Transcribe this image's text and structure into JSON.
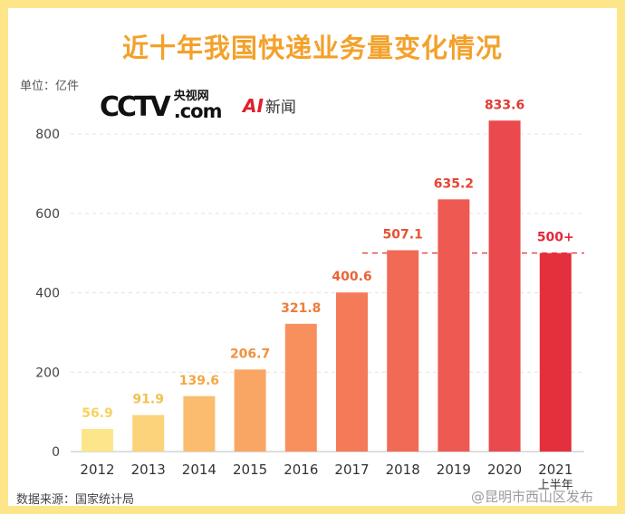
{
  "header": {
    "title": "近十年我国快递业务量变化情况",
    "unit": "单位：亿件"
  },
  "logos": {
    "cctv_mark": "CCTV",
    "cctv_cn": "央视网",
    "cctv_com": ".com",
    "ai_mark": "AI",
    "ai_text": "新闻"
  },
  "footer": {
    "source": "数据来源：国家统计局",
    "watermark": "@昆明市西山区发布"
  },
  "chart_data": {
    "type": "bar",
    "title": "近十年我国快递业务量变化情况",
    "ylabel": "单位：亿件",
    "xlabel": "",
    "ylim": [
      0,
      800
    ],
    "yticks": [
      0,
      200,
      400,
      600,
      800
    ],
    "grid": true,
    "categories": [
      "2012",
      "2013",
      "2014",
      "2015",
      "2016",
      "2017",
      "2018",
      "2019",
      "2020",
      "2021"
    ],
    "category_sublabels": {
      "2021": "上半年"
    },
    "values": [
      56.9,
      91.9,
      139.6,
      206.7,
      321.8,
      400.6,
      507.1,
      635.2,
      833.6,
      500
    ],
    "value_labels": [
      "56.9",
      "91.9",
      "139.6",
      "206.7",
      "321.8",
      "400.6",
      "507.1",
      "635.2",
      "833.6",
      "500+"
    ],
    "bar_colors": [
      "#fde58a",
      "#fcd27a",
      "#fbbc6e",
      "#f9a664",
      "#f7905d",
      "#f47a58",
      "#f16a55",
      "#ee5a52",
      "#ea4a4e",
      "#e3303c"
    ],
    "label_colors": [
      "#f6d35f",
      "#f3c04f",
      "#f1a843",
      "#ee923d",
      "#ec7d38",
      "#e96434",
      "#e75232",
      "#e54533",
      "#e33a35",
      "#e3283a"
    ],
    "reference_line": {
      "value": 500,
      "style": "dashed",
      "color": "#e3303c"
    }
  }
}
